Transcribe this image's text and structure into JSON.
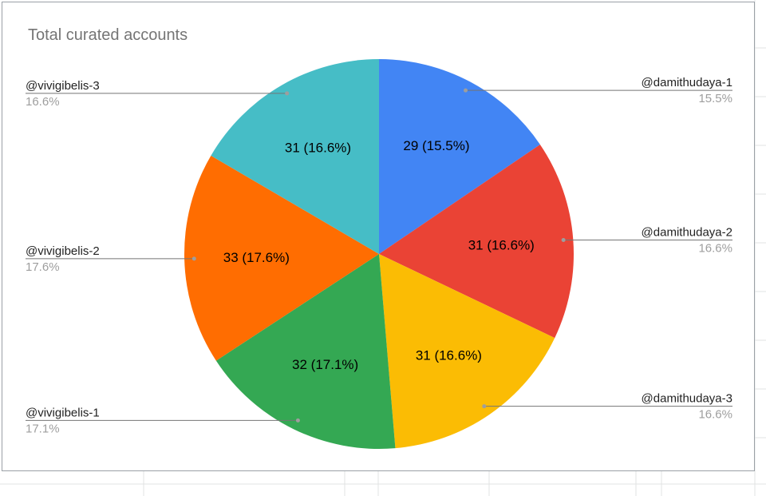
{
  "chart_data": {
    "type": "pie",
    "title": "Total curated accounts",
    "colors": [
      "#4285f4",
      "#ea4335",
      "#fbbc04",
      "#34a853",
      "#ff6d01",
      "#46bdc6"
    ],
    "slices": [
      {
        "label": "@damithudaya-1",
        "value": 29,
        "percent": "15.5%",
        "display": "29 (15.5%)"
      },
      {
        "label": "@damithudaya-2",
        "value": 31,
        "percent": "16.6%",
        "display": "31 (16.6%)"
      },
      {
        "label": "@damithudaya-3",
        "value": 31,
        "percent": "16.6%",
        "display": "31 (16.6%)"
      },
      {
        "label": "@vivigibelis-1",
        "value": 32,
        "percent": "17.1%",
        "display": "32 (17.1%)"
      },
      {
        "label": "@vivigibelis-2",
        "value": 33,
        "percent": "17.6%",
        "display": "33 (17.6%)"
      },
      {
        "label": "@vivigibelis-3",
        "value": 31,
        "percent": "16.6%",
        "display": "31 (16.6%)"
      }
    ],
    "legend": "labeled-callouts",
    "start_angle": "12 o'clock",
    "direction": "clockwise"
  }
}
